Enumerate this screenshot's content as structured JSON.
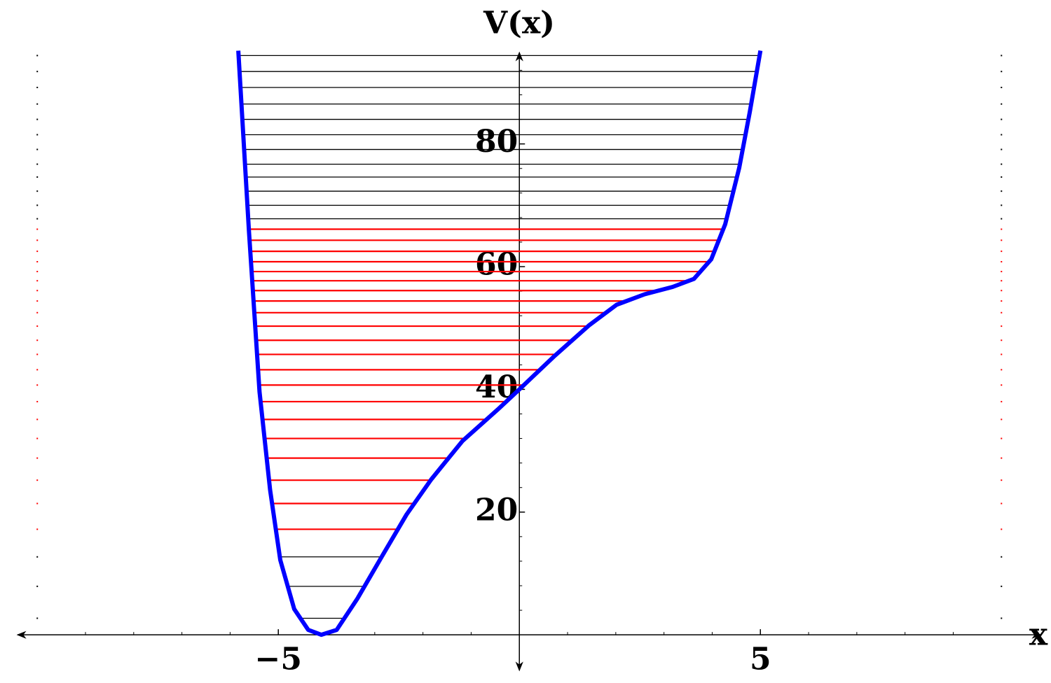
{
  "chart_data": {
    "type": "potential",
    "title": "V(x)",
    "xlabel": "x",
    "xlim": [
      -10.41,
      10.81
    ],
    "ylim": [
      -5.8,
      94.9
    ],
    "xticks": [
      {
        "value": -5,
        "label": "−5"
      },
      5
    ],
    "yticks": [
      20,
      40,
      60,
      80
    ],
    "xminor": [
      -9,
      -8,
      -7,
      -6,
      -4,
      -3,
      -2,
      -1,
      1,
      2,
      3,
      4,
      6,
      7,
      8,
      9
    ],
    "yminor": [
      4,
      8,
      12,
      16,
      24,
      28,
      32,
      36,
      44,
      48,
      52,
      56,
      64,
      68,
      72,
      76,
      84,
      88,
      92
    ],
    "curve": {
      "color": "#0000ff",
      "x": [
        -5.83,
        -5.61,
        -5.39,
        -5.17,
        -4.96,
        -4.67,
        -4.38,
        -4.11,
        -3.79,
        -3.36,
        -2.85,
        -2.34,
        -1.83,
        -1.18,
        -0.45,
        0,
        0.71,
        1.44,
        2.02,
        2.6,
        3.18,
        3.62,
        3.98,
        4.27,
        4.56,
        4.78,
        5.0
      ],
      "values": [
        95.2,
        65.8,
        39.6,
        23.6,
        12.2,
        4.2,
        0.8,
        0,
        0.8,
        5.9,
        12.8,
        19.6,
        25.3,
        31.6,
        36.7,
        40,
        45.3,
        50.4,
        53.8,
        55.5,
        56.7,
        58.0,
        61.2,
        66.9,
        76.1,
        85.2,
        95.2
      ]
    },
    "marker_x": [
      -10,
      10
    ],
    "levels": [
      {
        "color": "#000000",
        "values": [
          2.7,
          7.9,
          12.7
        ]
      },
      {
        "color": "#ff0000",
        "values": [
          17.2,
          21.4,
          25.2,
          28.8,
          32.0,
          35.1,
          38.0,
          40.7,
          43.2,
          45.7,
          48.0,
          50.3,
          52.5,
          54.4,
          56.1,
          57.7,
          59.2,
          60.8,
          62.5,
          64.3,
          66.1
        ]
      },
      {
        "color": "#000000",
        "values": [
          67.8,
          70.0,
          72.3,
          74.6,
          76.7,
          79.1,
          81.5,
          84.0,
          86.5,
          89.2,
          91.8,
          94.4
        ]
      }
    ]
  }
}
